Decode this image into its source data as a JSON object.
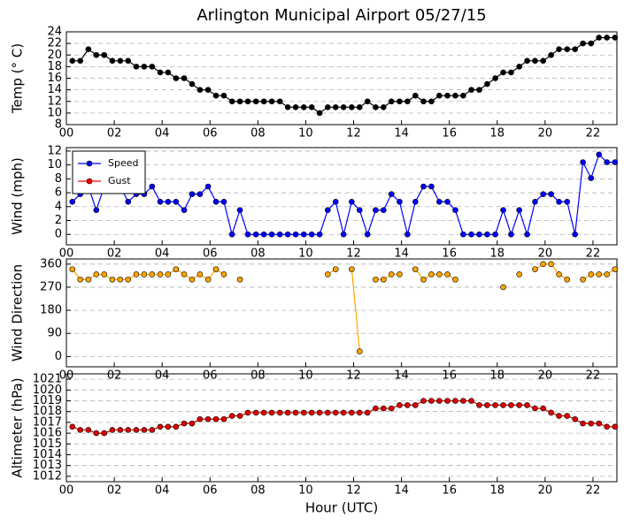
{
  "chart_data": [
    {
      "type": "line",
      "title": "Arlington Municipal Airport 05/27/15",
      "ylabel": "Temp (° C)",
      "x": [
        0.25,
        0.58,
        0.92,
        1.25,
        1.58,
        1.92,
        2.25,
        2.58,
        2.92,
        3.25,
        3.58,
        3.92,
        4.25,
        4.58,
        4.92,
        5.25,
        5.58,
        5.92,
        6.25,
        6.58,
        6.92,
        7.25,
        7.58,
        7.92,
        8.25,
        8.58,
        8.92,
        9.25,
        9.58,
        9.92,
        10.25,
        10.58,
        10.92,
        11.25,
        11.58,
        11.92,
        12.25,
        12.58,
        12.92,
        13.25,
        13.58,
        13.92,
        14.25,
        14.58,
        14.92,
        15.25,
        15.58,
        15.92,
        16.25,
        16.58,
        16.92,
        17.25,
        17.58,
        17.92,
        18.25,
        18.58,
        18.92,
        19.25,
        19.58,
        19.92,
        20.25,
        20.58,
        20.92,
        21.25,
        21.58,
        21.92,
        22.25,
        22.58,
        22.92
      ],
      "series": [
        {
          "name": "Temp",
          "color": "#000000",
          "values": [
            19,
            19,
            21,
            20,
            20,
            19,
            19,
            19,
            18,
            18,
            18,
            17,
            17,
            16,
            16,
            15,
            14,
            14,
            13,
            13,
            12,
            12,
            12,
            12,
            12,
            12,
            12,
            11,
            11,
            11,
            11,
            10,
            11,
            11,
            11,
            11,
            11,
            12,
            11,
            11,
            12,
            12,
            12,
            13,
            12,
            12,
            13,
            13,
            13,
            13,
            14,
            14,
            15,
            16,
            17,
            17,
            18,
            19,
            19,
            19,
            20,
            21,
            21,
            21,
            22,
            22,
            23,
            23,
            23
          ]
        }
      ],
      "xlim": [
        0,
        23
      ],
      "xticks": [
        {
          "value": 0,
          "label": "00"
        },
        {
          "value": 2,
          "label": "02"
        },
        {
          "value": 4,
          "label": "04"
        },
        {
          "value": 6,
          "label": "06"
        },
        {
          "value": 8,
          "label": "08"
        },
        {
          "value": 10,
          "label": "10"
        },
        {
          "value": 12,
          "label": "12"
        },
        {
          "value": 14,
          "label": "14"
        },
        {
          "value": 16,
          "label": "16"
        },
        {
          "value": 18,
          "label": "18"
        },
        {
          "value": 20,
          "label": "20"
        },
        {
          "value": 22,
          "label": "22"
        }
      ],
      "ylim": [
        8,
        24
      ],
      "yticks": [
        8,
        10,
        12,
        14,
        16,
        18,
        20,
        22,
        24
      ],
      "grid": true
    },
    {
      "type": "line",
      "ylabel": "Wind (mph)",
      "legend": "upper left",
      "x": [
        0.25,
        0.58,
        0.92,
        1.25,
        1.58,
        1.92,
        2.25,
        2.58,
        2.92,
        3.25,
        3.58,
        3.92,
        4.25,
        4.58,
        4.92,
        5.25,
        5.58,
        5.92,
        6.25,
        6.58,
        6.92,
        7.25,
        7.58,
        7.92,
        8.25,
        8.58,
        8.92,
        9.25,
        9.58,
        9.92,
        10.25,
        10.58,
        10.92,
        11.25,
        11.58,
        11.92,
        12.25,
        12.58,
        12.92,
        13.25,
        13.58,
        13.92,
        14.25,
        14.58,
        14.92,
        15.25,
        15.58,
        15.92,
        16.25,
        16.58,
        16.92,
        17.25,
        17.58,
        17.92,
        18.25,
        18.58,
        18.92,
        19.25,
        19.58,
        19.92,
        20.25,
        20.58,
        20.92,
        21.25,
        21.58,
        21.92,
        22.25,
        22.58,
        22.92
      ],
      "series": [
        {
          "name": "Speed",
          "color": "#0000ff",
          "values": [
            4.7,
            5.8,
            6.9,
            3.5,
            6.9,
            6.9,
            6.9,
            4.7,
            5.8,
            5.8,
            6.9,
            4.7,
            4.7,
            4.7,
            3.5,
            5.8,
            5.8,
            6.9,
            4.7,
            4.7,
            0,
            3.5,
            0,
            0,
            0,
            0,
            0,
            0,
            0,
            0,
            0,
            0,
            3.5,
            4.7,
            0,
            4.7,
            3.5,
            0,
            3.5,
            3.5,
            5.8,
            4.7,
            0,
            4.7,
            6.9,
            6.9,
            4.7,
            4.7,
            3.5,
            0,
            0,
            0,
            0,
            0,
            3.5,
            0,
            3.5,
            0,
            4.7,
            5.8,
            5.8,
            4.7,
            4.7,
            0,
            10.4,
            8.1,
            11.5,
            10.4,
            10.4
          ]
        },
        {
          "name": "Gust",
          "color": "#ff0000",
          "values": [
            null,
            null,
            null,
            null,
            null,
            null,
            null,
            null,
            null,
            null,
            null,
            null,
            null,
            null,
            null,
            null,
            null,
            null,
            null,
            null,
            null,
            null,
            null,
            null,
            null,
            null,
            null,
            null,
            null,
            null,
            null,
            null,
            null,
            null,
            null,
            null,
            null,
            null,
            null,
            null,
            null,
            null,
            null,
            null,
            null,
            null,
            null,
            null,
            null,
            null,
            null,
            null,
            null,
            null,
            null,
            null,
            null,
            null,
            null,
            null,
            null,
            null,
            null,
            null,
            null,
            null,
            null,
            null,
            null
          ]
        }
      ],
      "xlim": [
        0,
        23
      ],
      "xticks": [
        {
          "value": 0,
          "label": "00"
        },
        {
          "value": 2,
          "label": "02"
        },
        {
          "value": 4,
          "label": "04"
        },
        {
          "value": 6,
          "label": "06"
        },
        {
          "value": 8,
          "label": "08"
        },
        {
          "value": 10,
          "label": "10"
        },
        {
          "value": 12,
          "label": "12"
        },
        {
          "value": 14,
          "label": "14"
        },
        {
          "value": 16,
          "label": "16"
        },
        {
          "value": 18,
          "label": "18"
        },
        {
          "value": 20,
          "label": "20"
        },
        {
          "value": 22,
          "label": "22"
        }
      ],
      "ylim": [
        -1.5,
        12.5
      ],
      "yticks": [
        0,
        2,
        4,
        6,
        8,
        10,
        12
      ],
      "grid": true
    },
    {
      "type": "line",
      "ylabel": "Wind Direction",
      "x": [
        0.25,
        0.58,
        0.92,
        1.25,
        1.58,
        1.92,
        2.25,
        2.58,
        2.92,
        3.25,
        3.58,
        3.92,
        4.25,
        4.58,
        4.92,
        5.25,
        5.58,
        5.92,
        6.25,
        6.58,
        6.92,
        7.25,
        7.58,
        7.92,
        8.25,
        8.58,
        8.92,
        9.25,
        9.58,
        9.92,
        10.25,
        10.58,
        10.92,
        11.25,
        11.58,
        11.92,
        12.25,
        12.58,
        12.92,
        13.25,
        13.58,
        13.92,
        14.25,
        14.58,
        14.92,
        15.25,
        15.58,
        15.92,
        16.25,
        16.58,
        16.92,
        17.25,
        17.58,
        17.92,
        18.25,
        18.58,
        18.92,
        19.25,
        19.58,
        19.92,
        20.25,
        20.58,
        20.92,
        21.25,
        21.58,
        21.92,
        22.25,
        22.58,
        22.92
      ],
      "series": [
        {
          "name": "Direction",
          "color": "#ffa500",
          "values": [
            340,
            300,
            300,
            320,
            320,
            300,
            300,
            300,
            320,
            320,
            320,
            320,
            320,
            340,
            320,
            300,
            320,
            300,
            340,
            320,
            null,
            300,
            null,
            null,
            null,
            null,
            null,
            null,
            null,
            null,
            null,
            null,
            320,
            340,
            null,
            340,
            20,
            null,
            300,
            300,
            320,
            320,
            null,
            340,
            300,
            320,
            320,
            320,
            300,
            null,
            null,
            null,
            null,
            null,
            270,
            null,
            320,
            null,
            340,
            360,
            360,
            320,
            300,
            null,
            300,
            320,
            320,
            320,
            340
          ]
        }
      ],
      "xlim": [
        0,
        23
      ],
      "xticks": [
        {
          "value": 0,
          "label": "00"
        },
        {
          "value": 2,
          "label": "02"
        },
        {
          "value": 4,
          "label": "04"
        },
        {
          "value": 6,
          "label": "06"
        },
        {
          "value": 8,
          "label": "08"
        },
        {
          "value": 10,
          "label": "10"
        },
        {
          "value": 12,
          "label": "12"
        },
        {
          "value": 14,
          "label": "14"
        },
        {
          "value": 16,
          "label": "16"
        },
        {
          "value": 18,
          "label": "18"
        },
        {
          "value": 20,
          "label": "20"
        },
        {
          "value": 22,
          "label": "22"
        }
      ],
      "ylim": [
        -40,
        380
      ],
      "yticks": [
        0,
        90,
        180,
        270,
        360
      ],
      "grid": true
    },
    {
      "type": "line",
      "ylabel": "Altimeter (hPa)",
      "xlabel": "Hour (UTC)",
      "x": [
        0.25,
        0.58,
        0.92,
        1.25,
        1.58,
        1.92,
        2.25,
        2.58,
        2.92,
        3.25,
        3.58,
        3.92,
        4.25,
        4.58,
        4.92,
        5.25,
        5.58,
        5.92,
        6.25,
        6.58,
        6.92,
        7.25,
        7.58,
        7.92,
        8.25,
        8.58,
        8.92,
        9.25,
        9.58,
        9.92,
        10.25,
        10.58,
        10.92,
        11.25,
        11.58,
        11.92,
        12.25,
        12.58,
        12.92,
        13.25,
        13.58,
        13.92,
        14.25,
        14.58,
        14.92,
        15.25,
        15.58,
        15.92,
        16.25,
        16.58,
        16.92,
        17.25,
        17.58,
        17.92,
        18.25,
        18.58,
        18.92,
        19.25,
        19.58,
        19.92,
        20.25,
        20.58,
        20.92,
        21.25,
        21.58,
        21.92,
        22.25,
        22.58,
        22.92
      ],
      "series": [
        {
          "name": "Altimeter",
          "color": "#dd0000",
          "values": [
            1016.6,
            1016.3,
            1016.3,
            1016,
            1016,
            1016.3,
            1016.3,
            1016.3,
            1016.3,
            1016.3,
            1016.3,
            1016.6,
            1016.6,
            1016.6,
            1016.9,
            1016.9,
            1017.3,
            1017.3,
            1017.3,
            1017.3,
            1017.6,
            1017.6,
            1017.9,
            1017.9,
            1017.9,
            1017.9,
            1017.9,
            1017.9,
            1017.9,
            1017.9,
            1017.9,
            1017.9,
            1017.9,
            1017.9,
            1017.9,
            1017.9,
            1017.9,
            1017.9,
            1018.3,
            1018.3,
            1018.3,
            1018.6,
            1018.6,
            1018.6,
            1019,
            1019,
            1019,
            1019,
            1019,
            1019,
            1019,
            1018.6,
            1018.6,
            1018.6,
            1018.6,
            1018.6,
            1018.6,
            1018.6,
            1018.3,
            1018.3,
            1017.9,
            1017.6,
            1017.6,
            1017.3,
            1016.9,
            1016.9,
            1016.9,
            1016.6,
            1016.6
          ]
        }
      ],
      "xlim": [
        0,
        23
      ],
      "xticks": [
        {
          "value": 0,
          "label": "00"
        },
        {
          "value": 2,
          "label": "02"
        },
        {
          "value": 4,
          "label": "04"
        },
        {
          "value": 6,
          "label": "06"
        },
        {
          "value": 8,
          "label": "08"
        },
        {
          "value": 10,
          "label": "10"
        },
        {
          "value": 12,
          "label": "12"
        },
        {
          "value": 14,
          "label": "14"
        },
        {
          "value": 16,
          "label": "16"
        },
        {
          "value": 18,
          "label": "18"
        },
        {
          "value": 20,
          "label": "20"
        },
        {
          "value": 22,
          "label": "22"
        }
      ],
      "ylim": [
        1011.5,
        1021.5
      ],
      "yticks": [
        1012,
        1013,
        1014,
        1015,
        1016,
        1017,
        1018,
        1019,
        1020,
        1021
      ],
      "grid": true
    }
  ]
}
